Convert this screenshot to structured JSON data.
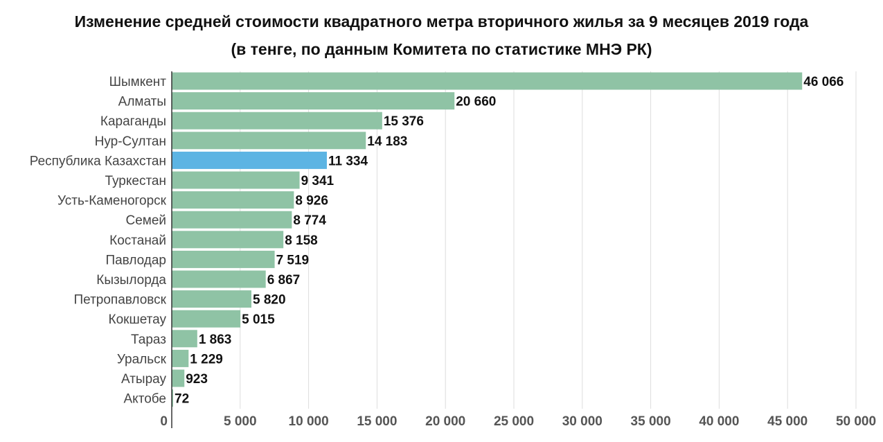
{
  "chart_data": {
    "type": "bar",
    "orientation": "horizontal",
    "title": "Изменение средней стоимости квадратного метра вторичного жилья за 9 месяцев 2019 года",
    "subtitle": "(в тенге, по данным Комитета по статистике МНЭ РК)",
    "categories": [
      "Шымкент",
      "Алматы",
      "Караганды",
      "Нур-Султан",
      "Республика Казахстан",
      "Туркестан",
      "Усть-Каменогорск",
      "Семей",
      "Костанай",
      "Павлодар",
      "Кызылорда",
      "Петропавловск",
      "Кокшетау",
      "Тараз",
      "Уральск",
      "Атырау",
      "Актобе"
    ],
    "values": [
      46066,
      20660,
      15376,
      14183,
      11334,
      9341,
      8926,
      8774,
      8158,
      7519,
      6867,
      5820,
      5015,
      1863,
      1229,
      923,
      72
    ],
    "value_labels": [
      "46 066",
      "20 660",
      "15 376",
      "14 183",
      "11 334",
      "9 341",
      "8 926",
      "8 774",
      "8 158",
      "7 519",
      "6 867",
      "5 820",
      "5 015",
      "1 863",
      "1 229",
      "923",
      "72"
    ],
    "highlighted_category": "Республика Казахстан",
    "xlim": [
      0,
      50000
    ],
    "x_ticks": [
      0,
      5000,
      10000,
      15000,
      20000,
      25000,
      30000,
      35000,
      40000,
      45000,
      50000
    ],
    "x_tick_labels": [
      "0",
      "5 000",
      "10 000",
      "15 000",
      "20 000",
      "25 000",
      "30 000",
      "35 000",
      "40 000",
      "45 000",
      "50 000"
    ],
    "grid": true,
    "colors": {
      "bar": "#8fc3a5",
      "highlight": "#5cb4e3",
      "grid": "#dddddd",
      "axis": "#333333"
    }
  }
}
